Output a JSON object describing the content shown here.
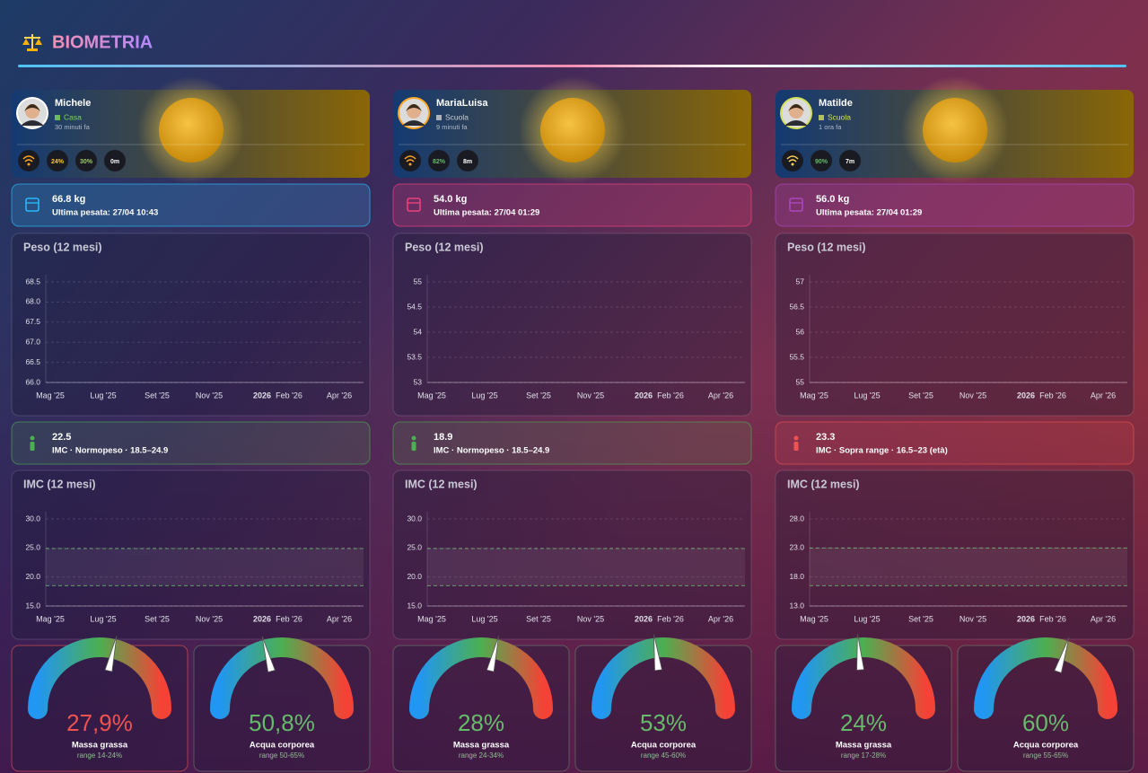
{
  "header": {
    "title": "BIOMETRIA"
  },
  "people": [
    {
      "name": "Michele",
      "location": "Casa",
      "location_color": "#7ed957",
      "updated": "30 minuti fa",
      "ring": "#ffffff",
      "chips": [
        {
          "text": "24%",
          "color": "#ffca28"
        },
        {
          "text": "30%",
          "color": "#9ccc65"
        },
        {
          "text": "0m",
          "color": "#ffffff"
        }
      ],
      "weight": {
        "value": "66.8 kg",
        "last": "Ultima pesata: 27/04 10:43",
        "color": "#29b6f6"
      },
      "weight_chart": {
        "title": "Peso (12 mesi)",
        "ylim": [
          66,
          68.5
        ],
        "yticks": [
          {
            "value": 66,
            "label": "66.0"
          },
          66.5,
          {
            "value": 67,
            "label": "67.0"
          },
          67.5,
          {
            "value": 68,
            "label": "68.0"
          },
          68.5
        ],
        "xticks": [
          "Mag '25",
          "Lug '25",
          "Set '25",
          "Nov '25",
          "2026",
          "Feb '26",
          "Apr '26"
        ]
      },
      "bmi": {
        "value": "22.5",
        "text": "IMC · Normopeso · 18.5–24.9",
        "color": "#4caf50"
      },
      "bmi_chart": {
        "title": "IMC (12 mesi)",
        "ylim": [
          15,
          30
        ],
        "yticks": [
          {
            "value": 15,
            "label": "15.0"
          },
          {
            "value": 20,
            "label": "20.0"
          },
          {
            "value": 25,
            "label": "25.0"
          },
          {
            "value": 30,
            "label": "30.0"
          }
        ],
        "band": [
          18.5,
          24.9
        ],
        "xticks": [
          "Mag '25",
          "Lug '25",
          "Set '25",
          "Nov '25",
          "2026",
          "Feb '26",
          "Apr '26"
        ]
      },
      "gauges": [
        {
          "value": 27.9,
          "value_label": "27,9%",
          "label": "Massa grassa",
          "range": "range 14-24%",
          "lim": [
            5,
            45
          ],
          "color": "#ef5350"
        },
        {
          "value": 50.8,
          "value_label": "50,8%",
          "label": "Acqua corporea",
          "range": "range 50-65%",
          "lim": [
            30,
            80
          ],
          "color": "#66bb6a"
        }
      ]
    },
    {
      "name": "MariaLuisa",
      "location": "Scuola",
      "location_color": "#cfcfcf",
      "updated": "9 minuti fa",
      "ring": "#ffa726",
      "chips": [
        {
          "text": "82%",
          "color": "#66bb6a"
        },
        {
          "text": "8m",
          "color": "#ffffff"
        }
      ],
      "weight": {
        "value": "54.0 kg",
        "last": "Ultima pesata: 27/04 01:29",
        "color": "#ec407a"
      },
      "weight_chart": {
        "title": "Peso (12 mesi)",
        "ylim": [
          53,
          55
        ],
        "yticks": [
          53,
          53.5,
          54,
          54.5,
          55
        ],
        "xticks": [
          "Mag '25",
          "Lug '25",
          "Set '25",
          "Nov '25",
          "2026",
          "Feb '26",
          "Apr '26"
        ]
      },
      "bmi": {
        "value": "18.9",
        "text": "IMC · Normopeso · 18.5–24.9",
        "color": "#4caf50"
      },
      "bmi_chart": {
        "title": "IMC (12 mesi)",
        "ylim": [
          15,
          30
        ],
        "yticks": [
          {
            "value": 15,
            "label": "15.0"
          },
          {
            "value": 20,
            "label": "20.0"
          },
          {
            "value": 25,
            "label": "25.0"
          },
          {
            "value": 30,
            "label": "30.0"
          }
        ],
        "band": [
          18.5,
          24.9
        ],
        "xticks": [
          "Mag '25",
          "Lug '25",
          "Set '25",
          "Nov '25",
          "2026",
          "Feb '26",
          "Apr '26"
        ]
      },
      "gauges": [
        {
          "value": 28,
          "value_label": "28%",
          "label": "Massa grassa",
          "range": "range 24-34%",
          "lim": [
            5,
            45
          ],
          "color": "#66bb6a"
        },
        {
          "value": 53,
          "value_label": "53%",
          "label": "Acqua corporea",
          "range": "range 45-60%",
          "lim": [
            30,
            80
          ],
          "color": "#66bb6a"
        }
      ]
    },
    {
      "name": "Matilde",
      "location": "Scuola",
      "location_color": "#d4e157",
      "updated": "1 ora fa",
      "ring": "#d4e157",
      "chips": [
        {
          "text": "90%",
          "color": "#66bb6a"
        },
        {
          "text": "7m",
          "color": "#ffffff"
        }
      ],
      "weight": {
        "value": "56.0 kg",
        "last": "Ultima pesata: 27/04 01:29",
        "color": "#ab47bc"
      },
      "weight_chart": {
        "title": "Peso (12 mesi)",
        "ylim": [
          55,
          57
        ],
        "yticks": [
          55,
          55.5,
          56,
          56.5,
          57
        ],
        "xticks": [
          "Mag '25",
          "Lug '25",
          "Set '25",
          "Nov '25",
          "2026",
          "Feb '26",
          "Apr '26"
        ]
      },
      "bmi": {
        "value": "23.3",
        "text": "IMC · Sopra range · 16.5–23 (età)",
        "color": "#ef5350"
      },
      "bmi_chart": {
        "title": "IMC (12 mesi)",
        "ylim": [
          13,
          28
        ],
        "yticks": [
          {
            "value": 13,
            "label": "13.0"
          },
          {
            "value": 18,
            "label": "18.0"
          },
          {
            "value": 23,
            "label": "23.0"
          },
          {
            "value": 28,
            "label": "28.0"
          }
        ],
        "band": [
          16.5,
          23
        ],
        "xticks": [
          "Mag '25",
          "Lug '25",
          "Set '25",
          "Nov '25",
          "2026",
          "Feb '26",
          "Apr '26"
        ]
      },
      "gauges": [
        {
          "value": 24,
          "value_label": "24%",
          "label": "Massa grassa",
          "range": "range 17-28%",
          "lim": [
            5,
            45
          ],
          "color": "#66bb6a"
        },
        {
          "value": 60,
          "value_label": "60%",
          "label": "Acqua corporea",
          "range": "range 55-65%",
          "lim": [
            30,
            80
          ],
          "color": "#66bb6a"
        }
      ]
    }
  ]
}
